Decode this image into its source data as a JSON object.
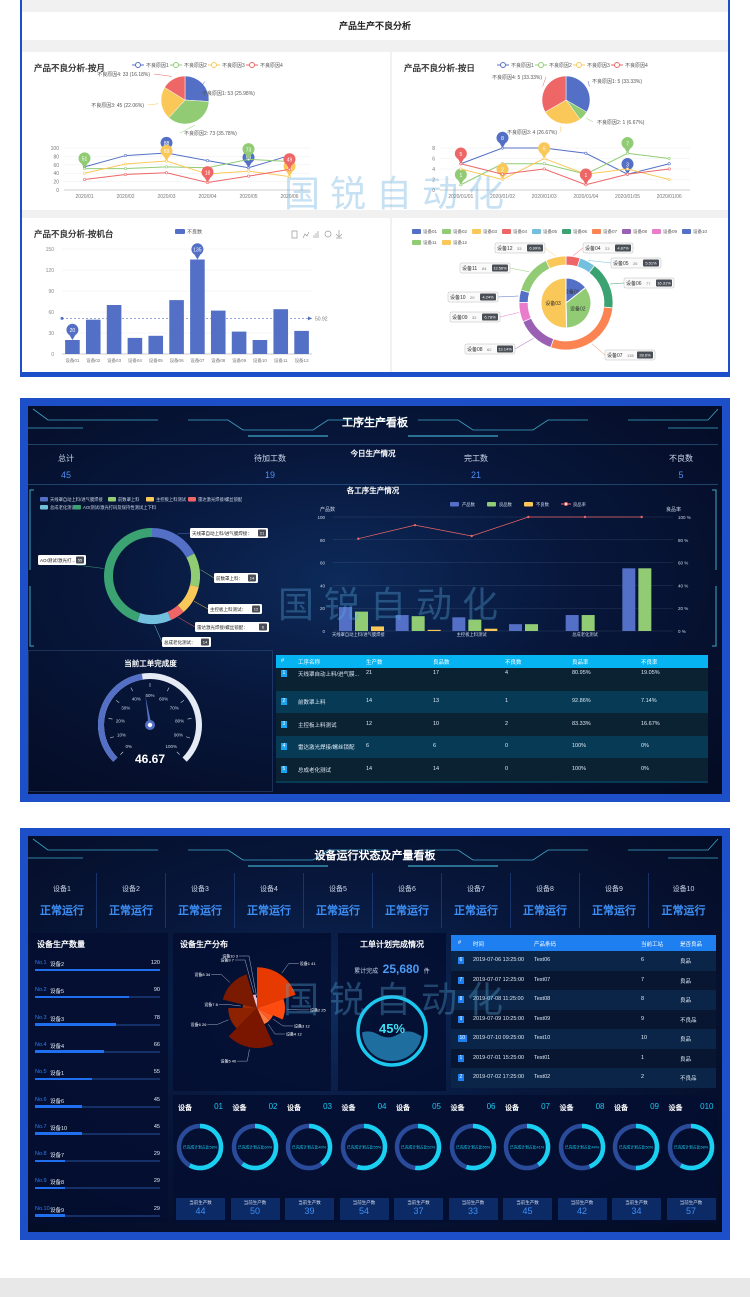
{
  "watermark": "国锐自动化",
  "section1": {
    "title": "产品生产不良分析",
    "monthly": {
      "title": "产品不良分析-按月",
      "legend": [
        "不良原因1",
        "不良原因2",
        "不良原因3",
        "不良原因4"
      ],
      "categories": [
        "2020/01",
        "2020/02",
        "2020/03",
        "2020/04",
        "2020/05",
        "2020/06"
      ],
      "yticks": [
        "0",
        "20",
        "40",
        "60",
        "80",
        "100"
      ],
      "ymax": 100,
      "series": [
        [
          55,
          82,
          88,
          70,
          53,
          82
        ],
        [
          51,
          51,
          55,
          53,
          73,
          68
        ],
        [
          40,
          62,
          69,
          38,
          45,
          32
        ],
        [
          25,
          37,
          41,
          18,
          33,
          49
        ]
      ],
      "pie": [
        53,
        73,
        45,
        33
      ],
      "pie_labels": [
        "不良原因1: 53 (25.98%)",
        "不良原因2: 73 (35.78%)",
        "不良原因3: 45 (22.06%)",
        "不良原因4: 33 (16.18%)"
      ]
    },
    "daily": {
      "title": "产品不良分析-按日",
      "legend": [
        "不良原因1",
        "不良原因2",
        "不良原因3",
        "不良原因4"
      ],
      "categories": [
        "2020/01/01",
        "2020/01/02",
        "2020/01/03",
        "2020/01/04",
        "2020/01/05",
        "2020/01/06"
      ],
      "yticks": [
        "0",
        "2",
        "4",
        "6",
        "8"
      ],
      "ymax": 8,
      "series": [
        [
          5,
          8,
          8,
          7,
          3,
          5
        ],
        [
          1,
          5,
          5,
          3,
          7,
          6
        ],
        [
          4,
          2,
          6,
          3,
          4,
          2
        ],
        [
          5,
          3,
          4,
          1,
          3,
          4
        ]
      ],
      "pie": [
        5,
        1,
        4,
        5
      ],
      "pie_labels": [
        "不良原因1: 5 (33.33%)",
        "不良原因2: 1 (6.67%)",
        "不良原因3: 4 (26.67%)",
        "不良原因4: 5 (33.33%)"
      ]
    },
    "machine": {
      "title": "产品不良分析-按机台",
      "legend": "不良数",
      "categories": [
        "设备01",
        "设备02",
        "设备03",
        "设备04",
        "设备05",
        "设备06",
        "设备07",
        "设备08",
        "设备09",
        "设备10",
        "设备11",
        "设备12"
      ],
      "values": [
        20,
        49,
        70,
        23,
        26,
        77,
        135,
        62,
        32,
        20,
        64,
        33
      ],
      "yticks": [
        "0",
        "30",
        "60",
        "90",
        "120",
        "150"
      ],
      "ymax": 150,
      "max_label": "135",
      "min_label": "20",
      "average": 50.92,
      "average_label": "50.92",
      "toolbox": [
        "data-view",
        "line",
        "bar",
        "restore",
        "save"
      ]
    },
    "donut": {
      "legend": [
        "设备01",
        "设备02",
        "设备03",
        "设备04",
        "设备05",
        "设备06",
        "设备07",
        "设备08",
        "设备09",
        "设备10",
        "设备11",
        "设备12"
      ],
      "inner": [
        {
          "name": "设备01",
          "value": 20
        },
        {
          "name": "设备02",
          "value": 49
        },
        {
          "name": "设备03",
          "value": 70
        }
      ],
      "outer": [
        {
          "name": "设备04",
          "value": 23,
          "pct": "4.87%"
        },
        {
          "name": "设备05",
          "value": 26,
          "pct": "5.51%"
        },
        {
          "name": "设备06",
          "value": 77,
          "pct": "16.31%"
        },
        {
          "name": "设备07",
          "value": 135,
          "pct": "28.6%"
        },
        {
          "name": "设备08",
          "value": 62,
          "pct": "13.14%"
        },
        {
          "name": "设备09",
          "value": 32,
          "pct": "6.78%"
        },
        {
          "name": "设备10",
          "value": 20,
          "pct": "4.24%"
        },
        {
          "name": "设备11",
          "value": 64,
          "pct": "13.56%"
        },
        {
          "name": "设备12",
          "value": 33,
          "pct": "6.99%"
        }
      ]
    },
    "colors": [
      "#5470c6",
      "#91cc75",
      "#fac858",
      "#ee6666",
      "#73c0de",
      "#3ba272",
      "#fc8452",
      "#9a60b4",
      "#ea7ccc",
      "#5470c6",
      "#91cc75",
      "#fac858"
    ]
  },
  "section2": {
    "title": "工序生产看板",
    "today_title": "今日生产情况",
    "stats": [
      {
        "label": "总计",
        "value": "45"
      },
      {
        "label": "待加工数",
        "value": "19"
      },
      {
        "label": "完工数",
        "value": "21"
      },
      {
        "label": "不良数",
        "value": "5"
      }
    ],
    "process_title": "各工序生产情况",
    "processes": [
      "天线罩自动上料/进气膜焊接",
      "前数罩上料",
      "主控板上料测试",
      "雷达激光焊接/螺丝锁配",
      "总成老化测试",
      "AOI测试/激光打码及保持性测试上下料"
    ],
    "donut_values": [
      21,
      14,
      12,
      6,
      14,
      55
    ],
    "donut_labels": [
      "天线罩自动上料/进气膜焊接：",
      "前数罩上料：",
      "主控板上料测试：",
      "雷达激光焊接/螺丝锁配：",
      "总成老化测试：",
      "AOI测试/激光打..."
    ],
    "bar_legend": [
      "产品数",
      "良品数",
      "不良数",
      "良品率"
    ],
    "bar_axis_left": "产品数",
    "bar_axis_right": "良品率",
    "bar_xlabels": [
      "天线罩自动上料/进气膜焊接",
      "",
      "主控板上料测试",
      "",
      "总成老化测试",
      ""
    ],
    "yticks_left": [
      "0",
      "20",
      "40",
      "60",
      "80",
      "100"
    ],
    "yticks_right": [
      "0 %",
      "20 %",
      "40 %",
      "60 %",
      "80 %",
      "100 %"
    ],
    "products": [
      21,
      14,
      12,
      6,
      14,
      55
    ],
    "good": [
      17,
      13,
      10,
      6,
      14,
      55
    ],
    "bad": [
      4,
      1,
      2,
      0,
      0,
      0
    ],
    "good_rate": [
      80.95,
      92.86,
      83.33,
      100,
      100,
      100
    ],
    "gauge": {
      "title": "当前工单完成度",
      "value": 46.67,
      "value_label": "46.67",
      "ticks": [
        "0%",
        "10%",
        "20%",
        "30%",
        "40%",
        "50%",
        "60%",
        "70%",
        "80%",
        "90%",
        "100%"
      ]
    },
    "table": {
      "headers": [
        "#",
        "工序名称",
        "生产数",
        "良品数",
        "不良数",
        "良品率",
        "不良率"
      ],
      "rows": [
        [
          "1",
          "天线罩自动上料/进气膜...",
          "21",
          "17",
          "4",
          "80.95%",
          "19.05%"
        ],
        [
          "2",
          "前数罩上料",
          "14",
          "13",
          "1",
          "92.86%",
          "7.14%"
        ],
        [
          "3",
          "主控板上料测试",
          "12",
          "10",
          "2",
          "83.33%",
          "16.67%"
        ],
        [
          "4",
          "雷达激光焊接/螺丝锁配",
          "6",
          "6",
          "0",
          "100%",
          "0%"
        ],
        [
          "5",
          "总成老化测试",
          "14",
          "14",
          "0",
          "100%",
          "0%"
        ],
        [
          "6",
          "AOI测试/激光打码及保持...",
          "55",
          "55",
          "0",
          "100%",
          "0%"
        ]
      ]
    }
  },
  "section3": {
    "title": "设备运行状态及产量看板",
    "devices": [
      {
        "name": "设备1",
        "status": "正常运行"
      },
      {
        "name": "设备2",
        "status": "正常运行"
      },
      {
        "name": "设备3",
        "status": "正常运行"
      },
      {
        "name": "设备4",
        "status": "正常运行"
      },
      {
        "name": "设备5",
        "status": "正常运行"
      },
      {
        "name": "设备6",
        "status": "正常运行"
      },
      {
        "name": "设备7",
        "status": "正常运行"
      },
      {
        "name": "设备8",
        "status": "正常运行"
      },
      {
        "name": "设备9",
        "status": "正常运行"
      },
      {
        "name": "设备10",
        "status": "正常运行"
      }
    ],
    "ranking_title": "设备生产数量",
    "ranking": [
      {
        "rank": "No.1",
        "name": "设备2",
        "value": 120
      },
      {
        "rank": "No.2",
        "name": "设备5",
        "value": 90
      },
      {
        "rank": "No.3",
        "name": "设备3",
        "value": 78
      },
      {
        "rank": "No.4",
        "name": "设备4",
        "value": 66
      },
      {
        "rank": "No.5",
        "name": "设备1",
        "value": 55
      },
      {
        "rank": "No.6",
        "name": "设备6",
        "value": 45
      },
      {
        "rank": "No.7",
        "name": "设备10",
        "value": 45
      },
      {
        "rank": "No.8",
        "name": "设备7",
        "value": 29
      },
      {
        "rank": "No.9",
        "name": "设备8",
        "value": 29
      },
      {
        "rank": "No.10",
        "name": "设备9",
        "value": 29
      }
    ],
    "distribution_title": "设备生产分布",
    "distribution": [
      {
        "label": "设备1 41",
        "value": 41
      },
      {
        "label": "设备2 25",
        "value": 25
      },
      {
        "label": "设备3 12",
        "value": 12
      },
      {
        "label": "设备4 12",
        "value": 12
      },
      {
        "label": "设备5 40",
        "value": 40
      },
      {
        "label": "设备6 26",
        "value": 26
      },
      {
        "label": "设备7 8",
        "value": 8
      },
      {
        "label": "设备8 34",
        "value": 34
      },
      {
        "label": "设备9 7",
        "value": 7
      },
      {
        "label": "设备10 3",
        "value": 3
      }
    ],
    "order": {
      "title": "工单计划完成情况",
      "cumulative_label": "累计完成",
      "cumulative_value": "25,680",
      "unit": "件",
      "percent": 45,
      "percent_label": "45%"
    },
    "table": {
      "headers": [
        "#",
        "时间",
        "产品条码",
        "当前工站",
        "是否良品"
      ],
      "rows": [
        [
          "6",
          "2019-07-06 13:25:00",
          "Test06",
          "6",
          "良品"
        ],
        [
          "7",
          "2019-07-07 12:25:00",
          "Test07",
          "7",
          "良品"
        ],
        [
          "8",
          "2019-07-08 11:25:00",
          "Test08",
          "8",
          "良品"
        ],
        [
          "9",
          "2019-07-09 10:25:00",
          "Test09",
          "9",
          "不良品"
        ],
        [
          "10",
          "2019-07-10 09:25:00",
          "Test10",
          "10",
          "良品"
        ],
        [
          "1",
          "2019-07-01 15:25:00",
          "Test01",
          "1",
          "良品"
        ],
        [
          "2",
          "2019-07-02 17:25:00",
          "Test02",
          "2",
          "不良品"
        ]
      ]
    },
    "rings": [
      {
        "label": "设备",
        "no": "01",
        "text": "已完成计划占比58%",
        "percent": 58,
        "count_label": "当前生产数",
        "count": "44"
      },
      {
        "label": "设备",
        "no": "02",
        "text": "已完成计划占比60%",
        "percent": 60,
        "count_label": "当前生产数",
        "count": "50"
      },
      {
        "label": "设备",
        "no": "03",
        "text": "已完成计划占比40%",
        "percent": 40,
        "count_label": "当前生产数",
        "count": "39"
      },
      {
        "label": "设备",
        "no": "04",
        "text": "已完成计划占比55%",
        "percent": 55,
        "count_label": "当前生产数",
        "count": "54"
      },
      {
        "label": "设备",
        "no": "05",
        "text": "已完成计划占比52%",
        "percent": 52,
        "count_label": "当前生产数",
        "count": "37"
      },
      {
        "label": "设备",
        "no": "06",
        "text": "已完成计划占比55%",
        "percent": 55,
        "count_label": "当前生产数",
        "count": "33"
      },
      {
        "label": "设备",
        "no": "07",
        "text": "已完成计划占比41%",
        "percent": 41,
        "count_label": "当前生产数",
        "count": "45"
      },
      {
        "label": "设备",
        "no": "08",
        "text": "已完成计划占比44%",
        "percent": 44,
        "count_label": "当前生产数",
        "count": "42"
      },
      {
        "label": "设备",
        "no": "09",
        "text": "已完成计划占比50%",
        "percent": 50,
        "count_label": "当前生产数",
        "count": "34"
      },
      {
        "label": "设备",
        "no": "010",
        "text": "已完成计划占比58%",
        "percent": 58,
        "count_label": "当前生产数",
        "count": "57"
      }
    ]
  }
}
